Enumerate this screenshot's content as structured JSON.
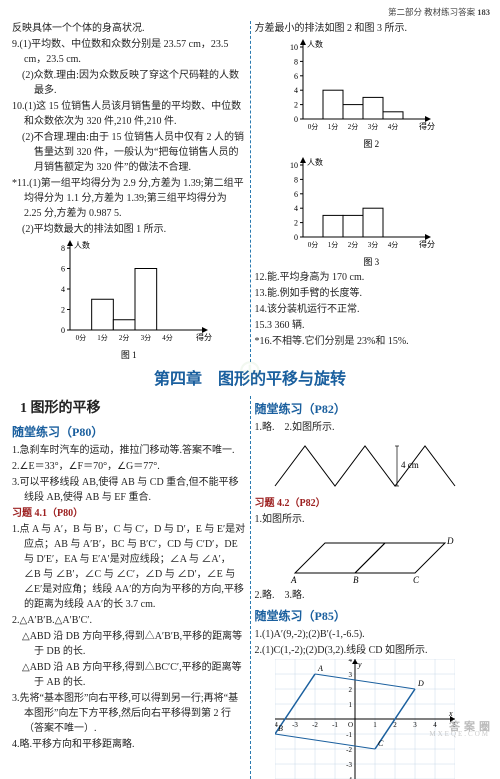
{
  "header": {
    "part": "第二部分",
    "title": "教材练习答案",
    "page": "183"
  },
  "upper": {
    "left": {
      "p0": "反映具体一个个体的身高状况.",
      "q9_1": "9.(1)平均数、中位数和众数分别是 23.57 cm，23.5 cm，23.5 cm.",
      "q9_2": "(2)众数.理由:因为众数反映了穿这个尺码鞋的人数最多.",
      "q10_1": "10.(1)这 15 位销售人员该月销售量的平均数、中位数和众数依次为 320 件,210 件,210 件.",
      "q10_2": "(2)不合理.理由:由于 15 位销售人员中仅有 2 人的销售量达到 320 件，一般认为“把每位销售人员的月销售额定为 320 件”的做法不合理.",
      "q11_1": "*11.(1)第一组平均得分为 2.9 分,方差为 1.39;第二组平均得分为 1.1 分,方差为 1.39;第三组平均得分为 2.25 分,方差为 0.987 5.",
      "q11_2": "(2)平均数最大的排法如图 1 所示.",
      "chart1": {
        "ylabel": "人数",
        "xlabel": "得分",
        "x_ticks": [
          "0分",
          "1分",
          "2分",
          "3分",
          "4分"
        ],
        "y_max": 8,
        "y_step": 2,
        "bars": [
          0,
          3,
          1,
          6,
          0
        ],
        "caption": "图 1",
        "bar_color": "#ffffff",
        "border_color": "#000000",
        "axis_color": "#000000"
      }
    },
    "right": {
      "intro": "方差最小的排法如图 2 和图 3 所示.",
      "chart2": {
        "ylabel": "人数",
        "xlabel": "得分",
        "x_ticks": [
          "0分",
          "1分",
          "2分",
          "3分",
          "4分"
        ],
        "y_max": 10,
        "y_step": 2,
        "bars": [
          0,
          4,
          2,
          3,
          1
        ],
        "caption": "图 2",
        "bar_color": "#ffffff",
        "border_color": "#000000",
        "axis_color": "#000000"
      },
      "chart3": {
        "ylabel": "人数",
        "xlabel": "得分",
        "x_ticks": [
          "0分",
          "1分",
          "2分",
          "3分",
          "4分"
        ],
        "y_max": 10,
        "y_step": 2,
        "bars": [
          0,
          3,
          3,
          4,
          0
        ],
        "caption": "图 3",
        "bar_color": "#ffffff",
        "border_color": "#000000",
        "axis_color": "#000000"
      },
      "q12": "12.能.平均身高为 170 cm.",
      "q13": "13.能.例如手臂的长度等.",
      "q14": "14.该分装机运行不正常.",
      "q15": "15.3 360 辆.",
      "q16": "*16.不相等.它们分别是 23%和 15%."
    }
  },
  "chapter": "第四章　图形的平移与旋转",
  "lower": {
    "left": {
      "sec_num": "1",
      "sec_title": "图形的平移",
      "h1": "随堂练习（P80）",
      "l1": "1.急刹车时汽车的运动，推拉门移动等.答案不唯一.",
      "l2": "2.∠E＝33°，∠F＝70°，∠G＝77°.",
      "l3": "3.可以平移线段 AB,使得 AB 与 CD 重合,但不能平移线段 AB,使得 AB 与 EF 重合.",
      "h2": "习题 4.1（P80）",
      "t1": "1.点 A 与 A′，B 与 B′，C 与 C′，D 与 D′，E 与 E′是对应点；AB 与 A′B′，BC 与 B′C′，CD 与 C′D′，DE 与 D′E′，EA 与 E′A′是对应线段；∠A 与 ∠A′，∠B 与 ∠B′，∠C 与 ∠C′，∠D 与 ∠D′，∠E 与 ∠E′是对应角；线段 AA′的方向为平移的方向,平移的距离为线段 AA′的长 3.7 cm.",
      "t2": "2.△A′B′B.△A′B′C′.",
      "t2a": "△ABD 沿 DB 方向平移,得到△A′B′B,平移的距离等于 DB 的长.",
      "t2b": "△ABD 沿 AB 方向平移,得到△BC′C′,平移的距离等于 AB 的长.",
      "t3": "3.先将“基本图形”向右平移,可以得到另一行;再将“基本图形”向左下方平移,然后向右平移得到第 2 行（答案不唯一）.",
      "t4": "4.略.平移方向和平移距离略."
    },
    "right": {
      "h1": "随堂练习（P82）",
      "r1": "1.略.　2.如图所示.",
      "zfig": {
        "label": "4 cm"
      },
      "h2": "习题 4.2（P82）",
      "r2": "1.如图所示.",
      "para_labels": [
        "A",
        "B",
        "C",
        "D"
      ],
      "r3": "2.略.　3.略.",
      "h3": "随堂练习（P85）",
      "r4": "1.(1)A′(9,-2);(2)B′(-1,-6.5).",
      "r5": "2.(1)C(1,-2);(2)D(3,2).线段 CD 如图所示.",
      "grid": {
        "xmin": -4,
        "xmax": 5,
        "ymin": -4,
        "ymax": 4,
        "pts": {
          "A": [
            -2,
            3
          ],
          "B": [
            -4,
            -1
          ],
          "C": [
            1,
            -2
          ],
          "D": [
            3,
            2
          ]
        },
        "line_color": "#1a5f9e"
      }
    }
  }
}
